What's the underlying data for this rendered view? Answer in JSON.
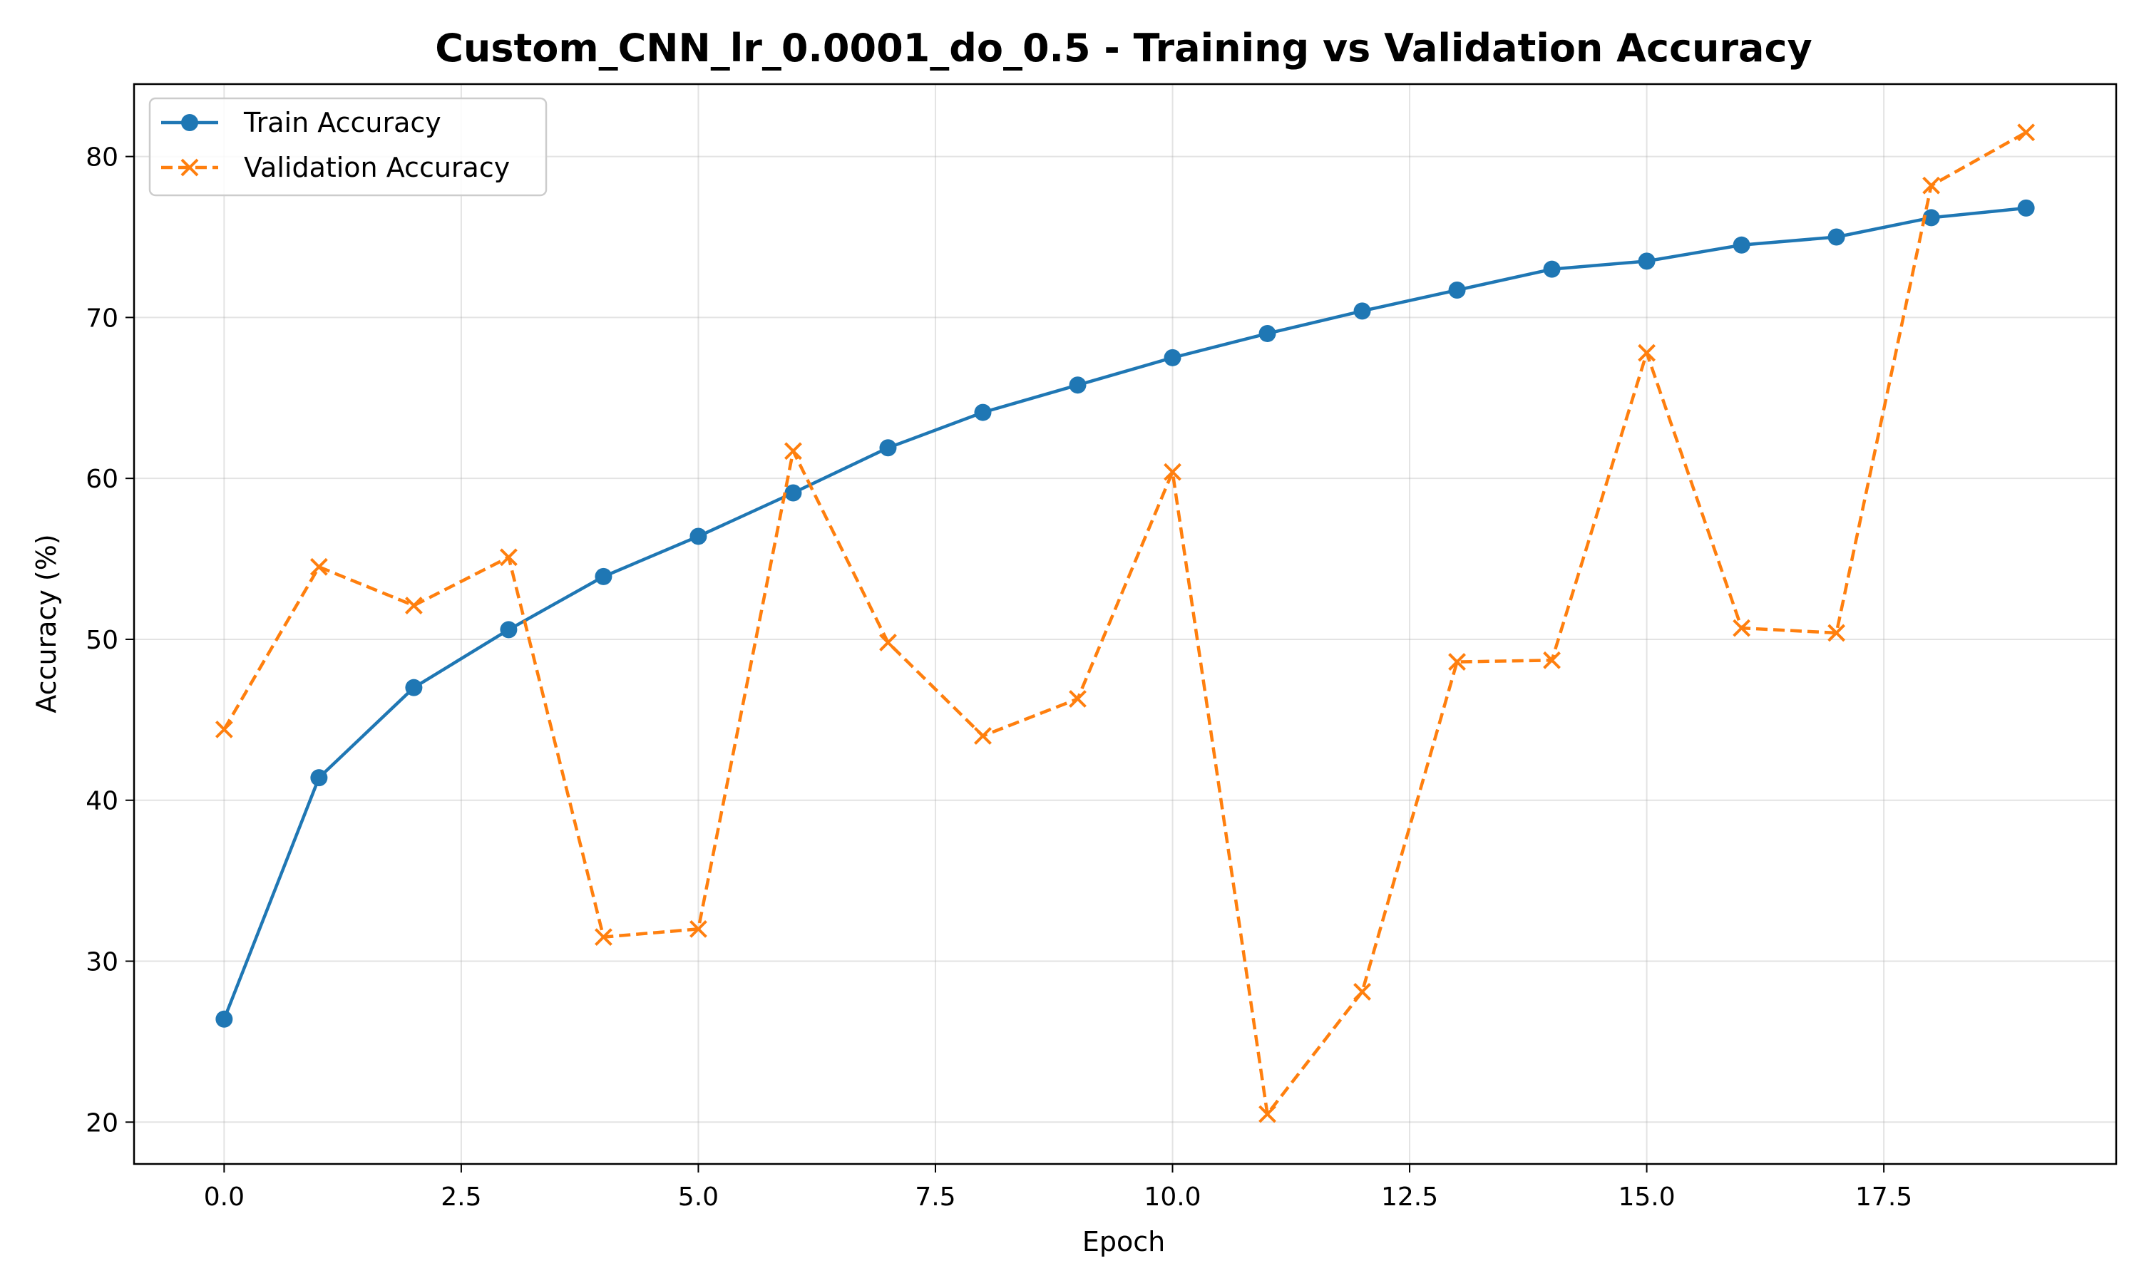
{
  "chart_data": {
    "type": "line",
    "title": "Custom_CNN_lr_0.0001_do_0.5 - Training vs Validation Accuracy",
    "xlabel": "Epoch",
    "ylabel": "Accuracy (%)",
    "xlim": [
      -0.95,
      19.95
    ],
    "ylim": [
      17.4,
      84.5
    ],
    "x_ticks": [
      0.0,
      2.5,
      5.0,
      7.5,
      10.0,
      12.5,
      15.0,
      17.5
    ],
    "x_tick_labels": [
      "0.0",
      "2.5",
      "5.0",
      "7.5",
      "10.0",
      "12.5",
      "15.0",
      "17.5"
    ],
    "y_ticks": [
      20,
      30,
      40,
      50,
      60,
      70,
      80
    ],
    "y_tick_labels": [
      "20",
      "30",
      "40",
      "50",
      "60",
      "70",
      "80"
    ],
    "grid": true,
    "legend_position": "top-left",
    "x": [
      0,
      1,
      2,
      3,
      4,
      5,
      6,
      7,
      8,
      9,
      10,
      11,
      12,
      13,
      14,
      15,
      16,
      17,
      18,
      19
    ],
    "series": [
      {
        "name": "Train Accuracy",
        "color": "#1f77b4",
        "line_style": "solid",
        "marker": "circle",
        "values": [
          26.4,
          41.4,
          47.0,
          50.6,
          53.9,
          56.4,
          59.1,
          61.9,
          64.1,
          65.8,
          67.5,
          69.0,
          70.4,
          71.7,
          73.0,
          73.5,
          74.5,
          75.0,
          76.2,
          76.8
        ]
      },
      {
        "name": "Validation Accuracy",
        "color": "#ff7f0e",
        "line_style": "dashed",
        "marker": "x",
        "values": [
          44.4,
          54.5,
          52.1,
          55.1,
          31.5,
          32.0,
          61.7,
          49.8,
          44.0,
          46.3,
          60.4,
          20.5,
          28.1,
          48.6,
          48.7,
          67.8,
          50.7,
          50.4,
          78.2,
          81.5
        ]
      }
    ]
  }
}
